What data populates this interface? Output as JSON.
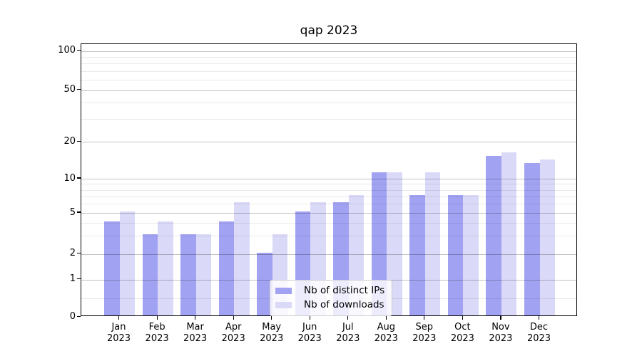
{
  "chart_data": {
    "type": "bar",
    "title": "qap 2023",
    "categories": [
      "Jan 2023",
      "Feb 2023",
      "Mar 2023",
      "Apr 2023",
      "May 2023",
      "Jun 2023",
      "Jul 2023",
      "Aug 2023",
      "Sep 2023",
      "Oct 2023",
      "Nov 2023",
      "Dec 2023"
    ],
    "series": [
      {
        "name": "Nb of distinct IPs",
        "color": "#a2a2f2",
        "values": [
          4,
          3,
          3,
          4,
          2,
          5,
          6,
          11,
          7,
          7,
          15,
          13
        ]
      },
      {
        "name": "Nb of downloads",
        "color": "#dadaf8",
        "values": [
          5,
          4,
          3,
          6,
          3,
          6,
          7,
          11,
          11,
          7,
          16,
          14
        ]
      }
    ],
    "yscale": "symlog",
    "y_ticks": [
      0,
      1,
      2,
      5,
      10,
      20,
      50,
      100
    ],
    "y_minor_gridlines": [
      0.5,
      3,
      4,
      6,
      7,
      8,
      9,
      30,
      40,
      60,
      70,
      80,
      90
    ],
    "ylim": [
      0,
      115
    ],
    "xlabel": "",
    "ylabel": "",
    "grid": true,
    "grid_above_bars": true,
    "legend_position": "inside lower center"
  },
  "colors": {
    "bar_dark": "#a2a2f2",
    "bar_light": "#dadaf8",
    "axis": "#000000",
    "background": "#ffffff"
  }
}
